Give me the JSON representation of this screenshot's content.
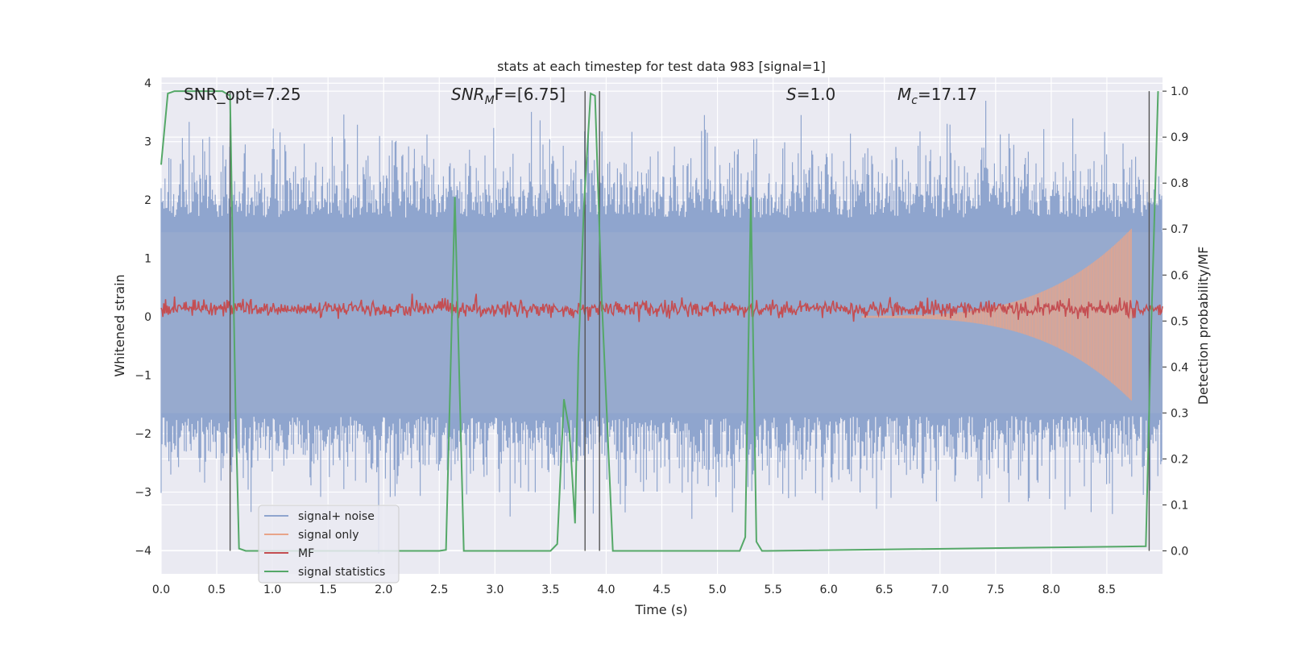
{
  "chart_data": {
    "type": "line",
    "title": "stats at each timestep for test data 983 [signal=1]",
    "xlabel": "Time (s)",
    "ylabel_left": "Whitened strain",
    "ylabel_right": "Detection probability/MF",
    "xlim": [
      0.0,
      9.0
    ],
    "ylim_left": [
      -4.4,
      4.1
    ],
    "ylim_right": [
      -0.05,
      1.03
    ],
    "x_ticks": [
      "0.0",
      "0.5",
      "1.0",
      "1.5",
      "2.0",
      "2.5",
      "3.0",
      "3.5",
      "4.0",
      "4.5",
      "5.0",
      "5.5",
      "6.0",
      "6.5",
      "7.0",
      "7.5",
      "8.0",
      "8.5"
    ],
    "y_left_ticks": [
      "4",
      "3",
      "2",
      "1",
      "0",
      "−1",
      "−2",
      "−3",
      "−4"
    ],
    "y_right_ticks": [
      "1.0",
      "0.9",
      "0.8",
      "0.7",
      "0.6",
      "0.5",
      "0.4",
      "0.3",
      "0.2",
      "0.1",
      "0.0"
    ],
    "grid": true,
    "legend_placement": "lower-left",
    "annotations": {
      "snr_opt": "SNR_opt=7.25",
      "snr_mf_main": "SNR",
      "snr_mf_sub": "M",
      "snr_mf_tail": "F=[6.75]",
      "s_main": "S",
      "s_tail": "=1.0",
      "mc_main": "M",
      "mc_sub": "c",
      "mc_tail": "=17.17"
    },
    "vertical_markers_s": [
      0.62,
      3.81,
      3.94,
      8.88
    ],
    "series": [
      {
        "name": "signal+ noise",
        "color": "#8fa5ce",
        "axis": "left",
        "style": "dense noise band, approx range -3.5 to 3.6"
      },
      {
        "name": "signal only",
        "color": "#e8a489",
        "axis": "left",
        "style": "chirp growing toward ~8.7 s, peak ~1.5"
      },
      {
        "name": "MF",
        "color": "#c44e52",
        "axis": "right",
        "style": "noisy trace around 0.52-0.55"
      },
      {
        "name": "signal statistics",
        "color": "#55a868",
        "axis": "right",
        "x": [
          0.0,
          0.06,
          0.12,
          0.2,
          0.35,
          0.55,
          0.62,
          0.64,
          0.67,
          0.7,
          0.76,
          0.9,
          2.5,
          2.56,
          2.6,
          2.64,
          2.68,
          2.72,
          2.76,
          3.5,
          3.56,
          3.62,
          3.67,
          3.72,
          3.75,
          3.8,
          3.86,
          3.9,
          3.96,
          4.06,
          5.2,
          5.25,
          5.3,
          5.35,
          5.4,
          5.45,
          8.85,
          8.9,
          8.96
        ],
        "y": [
          0.84,
          0.995,
          1.0,
          1.0,
          1.0,
          1.0,
          0.99,
          0.7,
          0.3,
          0.005,
          0.0,
          0.0,
          0.0,
          0.002,
          0.38,
          0.77,
          0.38,
          0.0,
          0.0,
          0.0,
          0.015,
          0.33,
          0.26,
          0.06,
          0.42,
          0.75,
          0.995,
          0.99,
          0.55,
          0.0,
          0.0,
          0.03,
          0.77,
          0.02,
          0.0,
          0.0,
          0.01,
          0.5,
          1.0
        ]
      }
    ]
  }
}
